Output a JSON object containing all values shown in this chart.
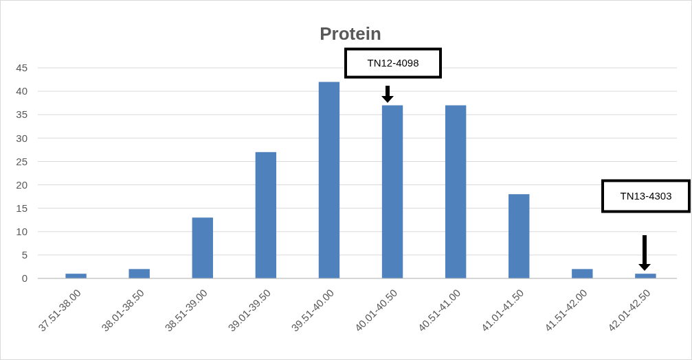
{
  "chart_data": {
    "type": "bar",
    "title": "Protein",
    "categories": [
      "37.51-38.00",
      "38.01-38.50",
      "38.51-39.00",
      "39.01-39.50",
      "39.51-40.00",
      "40.01-40.50",
      "40.51-41.00",
      "41.01-41.50",
      "41.51-42.00",
      "42.01-42.50"
    ],
    "values": [
      1,
      2,
      13,
      27,
      42,
      37,
      37,
      18,
      2,
      1
    ],
    "color": "#4f81bd",
    "ylim": [
      0,
      45
    ],
    "yticks": [
      0,
      5,
      10,
      15,
      20,
      25,
      30,
      35,
      40,
      45
    ],
    "grid": "y",
    "annotations": [
      "TN12-4098",
      "TN13-4303"
    ]
  }
}
